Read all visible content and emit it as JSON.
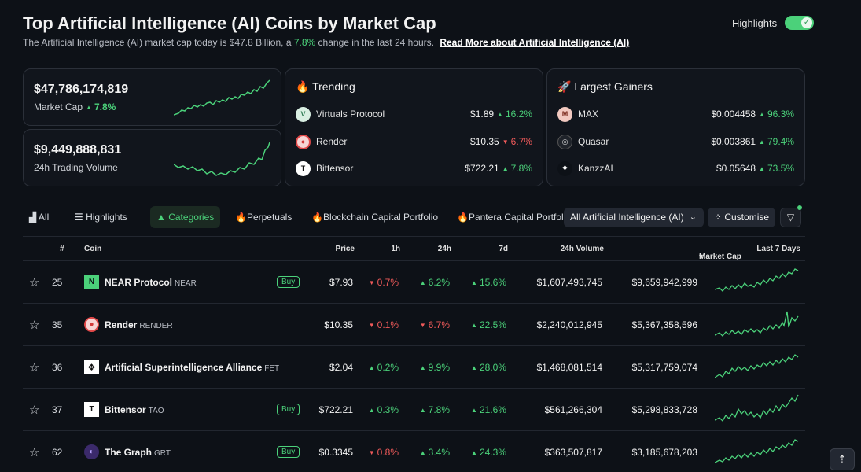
{
  "header": {
    "title": "Top Artificial Intelligence (AI) Coins by Market Cap",
    "subtitle_pre": "The Artificial Intelligence (AI) market cap today is $47.8 Billion, a",
    "subtitle_change": "7.8%",
    "subtitle_post": "change in the last 24 hours.",
    "read_more": "Read More about Artificial Intelligence (AI)",
    "highlights_label": "Highlights",
    "highlights_on": true
  },
  "market_cap_card": {
    "value": "$47,786,174,819",
    "label": "Market Cap",
    "change": "7.8%"
  },
  "volume_card": {
    "value": "$9,449,888,831",
    "label": "24h Trading Volume"
  },
  "trending": {
    "title": "Trending",
    "items": [
      {
        "name": "Virtuals Protocol",
        "price": "$1.89",
        "change": "16.2%",
        "dir": "up"
      },
      {
        "name": "Render",
        "price": "$10.35",
        "change": "6.7%",
        "dir": "down"
      },
      {
        "name": "Bittensor",
        "price": "$722.21",
        "change": "7.8%",
        "dir": "up"
      }
    ]
  },
  "gainers": {
    "title": "Largest Gainers",
    "items": [
      {
        "name": "MAX",
        "price": "$0.004458",
        "change": "96.3%"
      },
      {
        "name": "Quasar",
        "price": "$0.003861",
        "change": "79.4%"
      },
      {
        "name": "KanzzAI",
        "price": "$0.05648",
        "change": "73.5%"
      }
    ]
  },
  "tabs": [
    "All",
    "Highlights",
    "Categories",
    "Perpetuals",
    "Blockchain Capital Portfolio",
    "Pantera Capital Portfolio"
  ],
  "category_select": "All Artificial Intelligence (AI)",
  "customise_label": "Customise",
  "table": {
    "headers": {
      "rank": "#",
      "coin": "Coin",
      "price": "Price",
      "h1": "1h",
      "h24": "24h",
      "d7": "7d",
      "volume": "24h Volume",
      "mcap": "Market Cap",
      "last7": "Last 7 Days"
    },
    "buy_label": "Buy",
    "rows": [
      {
        "rank": "25",
        "name": "NEAR Protocol",
        "symbol": "NEAR",
        "buy": true,
        "price": "$7.93",
        "h1": "0.7%",
        "h1_dir": "down",
        "h24": "6.2%",
        "h24_dir": "up",
        "d7": "15.6%",
        "d7_dir": "up",
        "volume": "$1,607,493,745",
        "mcap": "$9,659,942,999"
      },
      {
        "rank": "35",
        "name": "Render",
        "symbol": "RENDER",
        "buy": false,
        "price": "$10.35",
        "h1": "0.1%",
        "h1_dir": "down",
        "h24": "6.7%",
        "h24_dir": "down",
        "d7": "22.5%",
        "d7_dir": "up",
        "volume": "$2,240,012,945",
        "mcap": "$5,367,358,596"
      },
      {
        "rank": "36",
        "name": "Artificial Superintelligence Alliance",
        "symbol": "FET",
        "buy": false,
        "price": "$2.04",
        "h1": "0.2%",
        "h1_dir": "up",
        "h24": "9.9%",
        "h24_dir": "up",
        "d7": "28.0%",
        "d7_dir": "up",
        "volume": "$1,468,081,514",
        "mcap": "$5,317,759,074"
      },
      {
        "rank": "37",
        "name": "Bittensor",
        "symbol": "TAO",
        "buy": true,
        "price": "$722.21",
        "h1": "0.3%",
        "h1_dir": "up",
        "h24": "7.8%",
        "h24_dir": "up",
        "d7": "21.6%",
        "d7_dir": "up",
        "volume": "$561,266,304",
        "mcap": "$5,298,833,728"
      },
      {
        "rank": "62",
        "name": "The Graph",
        "symbol": "GRT",
        "buy": true,
        "price": "$0.3345",
        "h1": "0.8%",
        "h1_dir": "down",
        "h24": "3.4%",
        "h24_dir": "up",
        "d7": "24.3%",
        "d7_dir": "up",
        "volume": "$363,507,817",
        "mcap": "$3,185,678,203"
      }
    ]
  },
  "icons": {
    "trending": "fire-icon",
    "gainers": "rocket-icon",
    "star": "star-icon",
    "filter": "filter-icon",
    "scroll": "scroll-top-icon"
  },
  "colors": {
    "up": "#4bd17a",
    "down": "#ef5a5a",
    "background": "#0d1117"
  }
}
